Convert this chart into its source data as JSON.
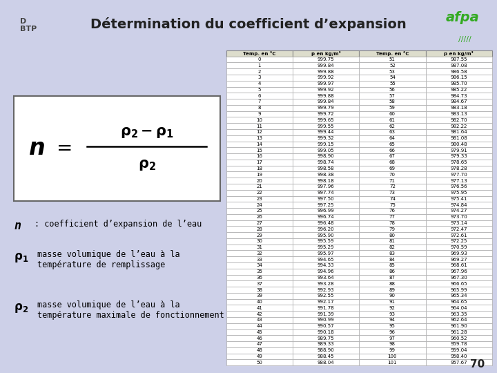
{
  "title": "Détermination du coefficient d’expansion",
  "background_color": "#cdd0e8",
  "header_bg": "#e8eed8",
  "page_number": "70",
  "table_col_headers": [
    "Temp. en °C",
    "p en kg/m³",
    "Temp. en °C",
    "p en kg/m³"
  ],
  "table_data": [
    [
      0,
      999.75,
      51,
      987.55
    ],
    [
      1,
      999.84,
      52,
      987.08
    ],
    [
      2,
      999.88,
      53,
      986.58
    ],
    [
      3,
      999.92,
      54,
      986.15
    ],
    [
      4,
      999.97,
      55,
      985.7
    ],
    [
      5,
      999.92,
      56,
      985.22
    ],
    [
      6,
      999.88,
      57,
      984.73
    ],
    [
      7,
      999.84,
      58,
      984.67
    ],
    [
      8,
      999.79,
      59,
      983.18
    ],
    [
      9,
      999.72,
      60,
      983.13
    ],
    [
      10,
      999.65,
      61,
      982.7
    ],
    [
      11,
      999.55,
      62,
      982.22
    ],
    [
      12,
      999.44,
      63,
      981.64
    ],
    [
      13,
      999.32,
      64,
      981.08
    ],
    [
      14,
      999.15,
      65,
      980.48
    ],
    [
      15,
      999.05,
      66,
      979.91
    ],
    [
      16,
      998.9,
      67,
      979.33
    ],
    [
      17,
      998.74,
      68,
      978.65
    ],
    [
      18,
      998.58,
      69,
      978.28
    ],
    [
      19,
      998.38,
      70,
      977.7
    ],
    [
      20,
      998.18,
      71,
      977.13
    ],
    [
      21,
      997.96,
      72,
      976.56
    ],
    [
      22,
      997.74,
      73,
      975.95
    ],
    [
      23,
      997.5,
      74,
      975.41
    ],
    [
      24,
      997.25,
      75,
      974.84
    ],
    [
      25,
      996.99,
      76,
      974.27
    ],
    [
      26,
      996.74,
      77,
      973.7
    ],
    [
      27,
      996.48,
      78,
      973.14
    ],
    [
      28,
      996.2,
      79,
      972.47
    ],
    [
      29,
      995.9,
      80,
      972.61
    ],
    [
      30,
      995.59,
      81,
      972.25
    ],
    [
      31,
      995.29,
      82,
      970.59
    ],
    [
      32,
      995.97,
      83,
      969.93
    ],
    [
      33,
      994.65,
      84,
      969.27
    ],
    [
      34,
      994.33,
      85,
      968.61
    ],
    [
      35,
      994.96,
      86,
      967.96
    ],
    [
      36,
      993.64,
      87,
      967.3
    ],
    [
      37,
      993.28,
      88,
      966.65
    ],
    [
      38,
      992.93,
      89,
      965.99
    ],
    [
      39,
      992.55,
      90,
      965.34
    ],
    [
      40,
      992.17,
      91,
      964.65
    ],
    [
      41,
      991.78,
      92,
      964.04
    ],
    [
      42,
      991.39,
      93,
      963.35
    ],
    [
      43,
      990.99,
      94,
      962.64
    ],
    [
      44,
      990.57,
      95,
      961.9
    ],
    [
      45,
      990.18,
      96,
      961.28
    ],
    [
      46,
      989.75,
      97,
      960.52
    ],
    [
      47,
      989.33,
      98,
      959.78
    ],
    [
      48,
      988.9,
      99,
      959.04
    ],
    [
      49,
      988.45,
      100,
      958.4
    ],
    [
      50,
      988.04,
      101,
      957.67
    ]
  ]
}
